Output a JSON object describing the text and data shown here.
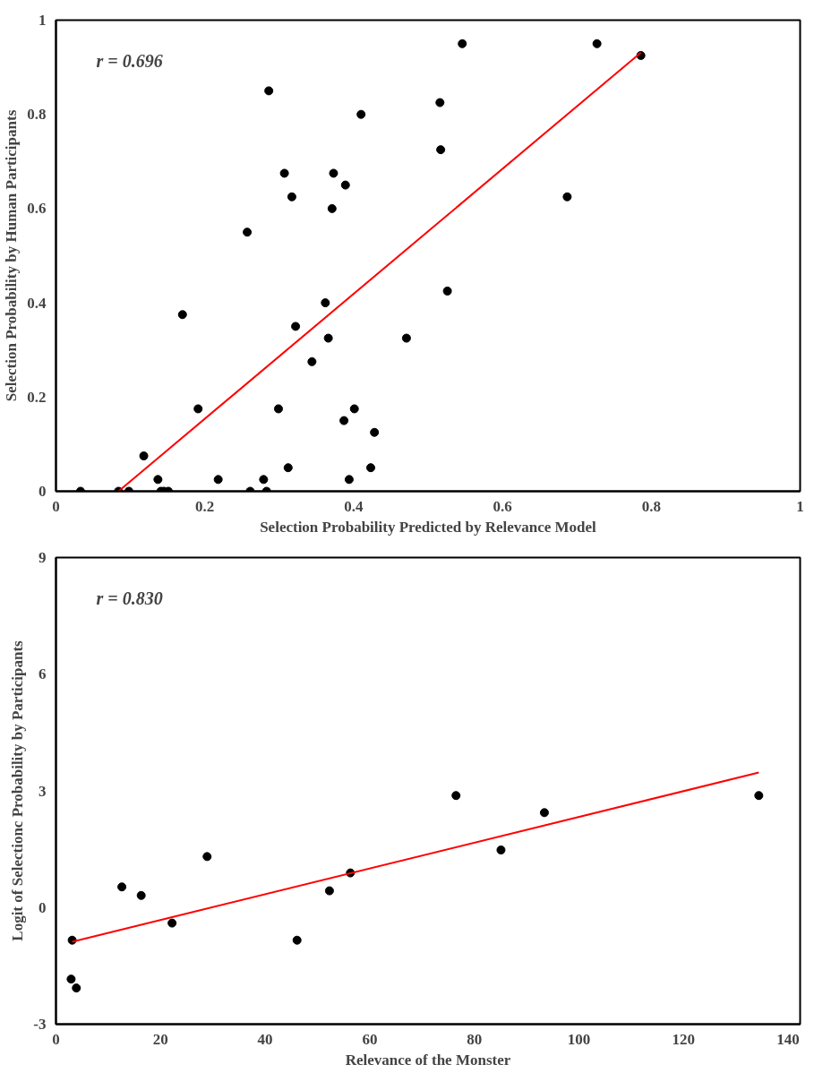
{
  "chart_data": [
    {
      "type": "scatter",
      "xlabel": "Selection Probability Predicted by Relevance Model",
      "ylabel": "Selection Probability by Human Participants",
      "annotations": [
        "r = 0.696"
      ],
      "xlim": [
        0,
        1
      ],
      "ylim": [
        0,
        1
      ],
      "xticks": [
        0,
        0.2,
        0.4,
        0.6,
        0.8,
        1
      ],
      "yticks": [
        0,
        0.2,
        0.4,
        0.6,
        0.8,
        1
      ],
      "grid": false,
      "series": [
        {
          "marker": "circle",
          "color": "#000000",
          "x": [
            0.033,
            0.084,
            0.098,
            0.118,
            0.137,
            0.141,
            0.145,
            0.151,
            0.17,
            0.191,
            0.218,
            0.257,
            0.261,
            0.286,
            0.279,
            0.283,
            0.299,
            0.307,
            0.312,
            0.317,
            0.322,
            0.344,
            0.362,
            0.366,
            0.371,
            0.373,
            0.387,
            0.389,
            0.394,
            0.401,
            0.41,
            0.423,
            0.428,
            0.471,
            0.516,
            0.517,
            0.526,
            0.546,
            0.687,
            0.727,
            0.786
          ],
          "values": [
            0,
            0,
            0,
            0.075,
            0.025,
            0,
            0,
            0,
            0.375,
            0.175,
            0.025,
            0.55,
            0,
            0.85,
            0.025,
            0,
            0.175,
            0.675,
            0.05,
            0.625,
            0.35,
            0.275,
            0.4,
            0.325,
            0.6,
            0.675,
            0.15,
            0.65,
            0.025,
            0.175,
            0.8,
            0.05,
            0.125,
            0.325,
            0.825,
            0.725,
            0.425,
            0.95,
            0.625,
            0.95,
            0.925
          ]
        },
        {
          "type": "line",
          "color": "#ff0000",
          "x": [
            0.084,
            0.786
          ],
          "values": [
            0,
            0.931
          ]
        }
      ]
    },
    {
      "type": "scatter",
      "xlabel": "Relevance of the Monster",
      "ylabel": "Logit of Selectionc Probability by Participants",
      "annotations": [
        "r = 0.830"
      ],
      "xlim": [
        0,
        142.3
      ],
      "ylim": [
        -3,
        9
      ],
      "xticks": [
        0,
        20,
        40,
        60,
        80,
        100,
        120,
        140
      ],
      "yticks": [
        -3,
        0,
        3,
        6,
        9
      ],
      "grid": false,
      "series": [
        {
          "marker": "circle",
          "color": "#000000",
          "x": [
            3.1,
            2.9,
            3.9,
            12.6,
            16.3,
            22.2,
            28.9,
            46.1,
            52.3,
            56.3,
            76.5,
            85.1,
            93.4,
            134.4
          ],
          "values": [
            -0.84,
            -1.84,
            -2.07,
            0.53,
            0.31,
            -0.4,
            1.31,
            -0.84,
            0.43,
            0.89,
            2.88,
            1.48,
            2.44,
            2.88
          ]
        },
        {
          "type": "line",
          "color": "#ff0000",
          "x": [
            3.1,
            134.4
          ],
          "values": [
            -0.88,
            3.47
          ]
        }
      ]
    }
  ]
}
